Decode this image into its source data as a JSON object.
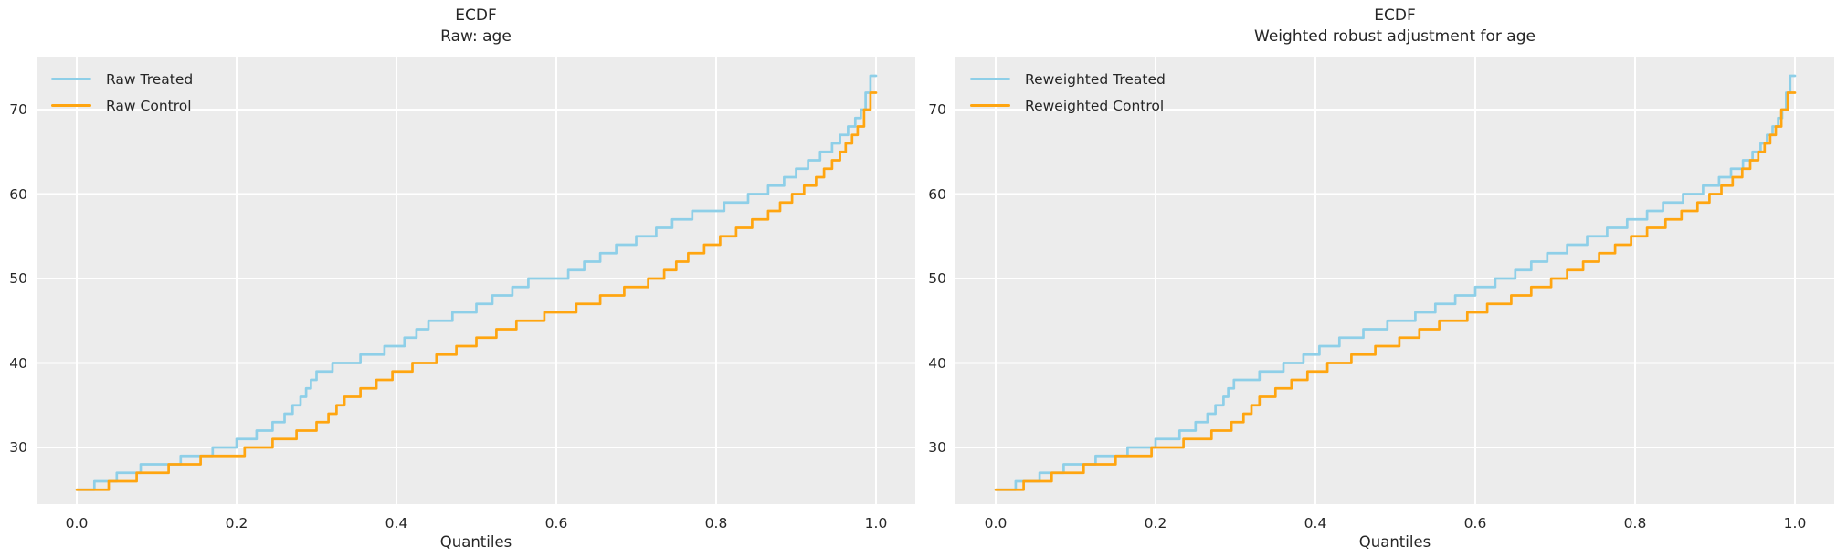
{
  "figure": {
    "background": "#ffffff",
    "axes_background": "#ececec",
    "grid_color": "#ffffff",
    "text_color": "#262626",
    "treated_color": "#8ecfe8",
    "control_color": "#ffa510"
  },
  "chart_data": [
    {
      "type": "line",
      "subtype": "quantile-step",
      "title": "ECDF",
      "subtitle": "Raw: age",
      "xlabel": "Quantiles",
      "ylabel": "",
      "grid": true,
      "legend_position": "upper left",
      "xlim": [
        -0.05,
        1.05
      ],
      "ylim": [
        23.3,
        76.3
      ],
      "x_ticks": [
        {
          "v": 0.0,
          "label": "0.0"
        },
        {
          "v": 0.2,
          "label": "0.2"
        },
        {
          "v": 0.4,
          "label": "0.4"
        },
        {
          "v": 0.6,
          "label": "0.6"
        },
        {
          "v": 0.8,
          "label": "0.8"
        },
        {
          "v": 1.0,
          "label": "1.0"
        }
      ],
      "y_ticks": [
        {
          "v": 30,
          "label": "30"
        },
        {
          "v": 40,
          "label": "40"
        },
        {
          "v": 50,
          "label": "50"
        },
        {
          "v": 60,
          "label": "60"
        },
        {
          "v": 70,
          "label": "70"
        }
      ],
      "series": [
        {
          "name": "Raw Treated",
          "color": "#8ecfe8",
          "points": [
            [
              0,
              25
            ],
            [
              0.022,
              26
            ],
            [
              0.05,
              27
            ],
            [
              0.08,
              28
            ],
            [
              0.13,
              29
            ],
            [
              0.17,
              30
            ],
            [
              0.2,
              31
            ],
            [
              0.225,
              32
            ],
            [
              0.245,
              33
            ],
            [
              0.26,
              34
            ],
            [
              0.27,
              35
            ],
            [
              0.28,
              36
            ],
            [
              0.287,
              37
            ],
            [
              0.293,
              38
            ],
            [
              0.3,
              39
            ],
            [
              0.32,
              40
            ],
            [
              0.355,
              41
            ],
            [
              0.385,
              42
            ],
            [
              0.41,
              43
            ],
            [
              0.425,
              44
            ],
            [
              0.44,
              45
            ],
            [
              0.47,
              46
            ],
            [
              0.5,
              47
            ],
            [
              0.52,
              48
            ],
            [
              0.545,
              49
            ],
            [
              0.565,
              50
            ],
            [
              0.615,
              51
            ],
            [
              0.635,
              52
            ],
            [
              0.655,
              53
            ],
            [
              0.675,
              54
            ],
            [
              0.7,
              55
            ],
            [
              0.725,
              56
            ],
            [
              0.745,
              57
            ],
            [
              0.77,
              58
            ],
            [
              0.81,
              59
            ],
            [
              0.84,
              60
            ],
            [
              0.865,
              61
            ],
            [
              0.885,
              62
            ],
            [
              0.9,
              63
            ],
            [
              0.915,
              64
            ],
            [
              0.93,
              65
            ],
            [
              0.945,
              66
            ],
            [
              0.955,
              67
            ],
            [
              0.965,
              68
            ],
            [
              0.974,
              69
            ],
            [
              0.981,
              70
            ],
            [
              0.987,
              72
            ],
            [
              0.993,
              74
            ]
          ]
        },
        {
          "name": "Raw Control",
          "color": "#ffa510",
          "points": [
            [
              0,
              25
            ],
            [
              0.04,
              26
            ],
            [
              0.075,
              27
            ],
            [
              0.115,
              28
            ],
            [
              0.155,
              29
            ],
            [
              0.21,
              30
            ],
            [
              0.245,
              31
            ],
            [
              0.275,
              32
            ],
            [
              0.3,
              33
            ],
            [
              0.315,
              34
            ],
            [
              0.325,
              35
            ],
            [
              0.335,
              36
            ],
            [
              0.355,
              37
            ],
            [
              0.375,
              38
            ],
            [
              0.395,
              39
            ],
            [
              0.42,
              40
            ],
            [
              0.45,
              41
            ],
            [
              0.475,
              42
            ],
            [
              0.5,
              43
            ],
            [
              0.525,
              44
            ],
            [
              0.55,
              45
            ],
            [
              0.585,
              46
            ],
            [
              0.625,
              47
            ],
            [
              0.655,
              48
            ],
            [
              0.685,
              49
            ],
            [
              0.715,
              50
            ],
            [
              0.735,
              51
            ],
            [
              0.75,
              52
            ],
            [
              0.765,
              53
            ],
            [
              0.785,
              54
            ],
            [
              0.805,
              55
            ],
            [
              0.825,
              56
            ],
            [
              0.845,
              57
            ],
            [
              0.865,
              58
            ],
            [
              0.88,
              59
            ],
            [
              0.895,
              60
            ],
            [
              0.91,
              61
            ],
            [
              0.925,
              62
            ],
            [
              0.935,
              63
            ],
            [
              0.945,
              64
            ],
            [
              0.955,
              65
            ],
            [
              0.962,
              66
            ],
            [
              0.97,
              67
            ],
            [
              0.977,
              68
            ],
            [
              0.985,
              70
            ],
            [
              0.993,
              72
            ]
          ]
        }
      ]
    },
    {
      "type": "line",
      "subtype": "quantile-step",
      "title": "ECDF",
      "subtitle": "Weighted robust adjustment for age",
      "xlabel": "Quantiles",
      "ylabel": "",
      "grid": true,
      "legend_position": "upper left",
      "xlim": [
        -0.05,
        1.05
      ],
      "ylim": [
        23.3,
        76.3
      ],
      "x_ticks": [
        {
          "v": 0.0,
          "label": "0.0"
        },
        {
          "v": 0.2,
          "label": "0.2"
        },
        {
          "v": 0.4,
          "label": "0.4"
        },
        {
          "v": 0.6,
          "label": "0.6"
        },
        {
          "v": 0.8,
          "label": "0.8"
        },
        {
          "v": 1.0,
          "label": "1.0"
        }
      ],
      "y_ticks": [
        {
          "v": 30,
          "label": "30"
        },
        {
          "v": 40,
          "label": "40"
        },
        {
          "v": 50,
          "label": "50"
        },
        {
          "v": 60,
          "label": "60"
        },
        {
          "v": 70,
          "label": "70"
        }
      ],
      "series": [
        {
          "name": "Reweighted Treated",
          "color": "#8ecfe8",
          "points": [
            [
              0,
              25
            ],
            [
              0.025,
              26
            ],
            [
              0.055,
              27
            ],
            [
              0.085,
              28
            ],
            [
              0.125,
              29
            ],
            [
              0.165,
              30
            ],
            [
              0.2,
              31
            ],
            [
              0.23,
              32
            ],
            [
              0.25,
              33
            ],
            [
              0.265,
              34
            ],
            [
              0.275,
              35
            ],
            [
              0.285,
              36
            ],
            [
              0.291,
              37
            ],
            [
              0.298,
              38
            ],
            [
              0.33,
              39
            ],
            [
              0.36,
              40
            ],
            [
              0.385,
              41
            ],
            [
              0.405,
              42
            ],
            [
              0.43,
              43
            ],
            [
              0.46,
              44
            ],
            [
              0.49,
              45
            ],
            [
              0.525,
              46
            ],
            [
              0.55,
              47
            ],
            [
              0.575,
              48
            ],
            [
              0.6,
              49
            ],
            [
              0.625,
              50
            ],
            [
              0.65,
              51
            ],
            [
              0.67,
              52
            ],
            [
              0.69,
              53
            ],
            [
              0.715,
              54
            ],
            [
              0.74,
              55
            ],
            [
              0.765,
              56
            ],
            [
              0.79,
              57
            ],
            [
              0.815,
              58
            ],
            [
              0.835,
              59
            ],
            [
              0.86,
              60
            ],
            [
              0.885,
              61
            ],
            [
              0.905,
              62
            ],
            [
              0.92,
              63
            ],
            [
              0.935,
              64
            ],
            [
              0.947,
              65
            ],
            [
              0.957,
              66
            ],
            [
              0.965,
              67
            ],
            [
              0.972,
              68
            ],
            [
              0.979,
              69
            ],
            [
              0.984,
              70
            ],
            [
              0.989,
              72
            ],
            [
              0.994,
              74
            ]
          ]
        },
        {
          "name": "Reweighted Control",
          "color": "#ffa510",
          "points": [
            [
              0,
              25
            ],
            [
              0.035,
              26
            ],
            [
              0.07,
              27
            ],
            [
              0.11,
              28
            ],
            [
              0.15,
              29
            ],
            [
              0.195,
              30
            ],
            [
              0.235,
              31
            ],
            [
              0.27,
              32
            ],
            [
              0.295,
              33
            ],
            [
              0.31,
              34
            ],
            [
              0.32,
              35
            ],
            [
              0.33,
              36
            ],
            [
              0.35,
              37
            ],
            [
              0.37,
              38
            ],
            [
              0.39,
              39
            ],
            [
              0.415,
              40
            ],
            [
              0.445,
              41
            ],
            [
              0.475,
              42
            ],
            [
              0.505,
              43
            ],
            [
              0.53,
              44
            ],
            [
              0.555,
              45
            ],
            [
              0.59,
              46
            ],
            [
              0.615,
              47
            ],
            [
              0.645,
              48
            ],
            [
              0.67,
              49
            ],
            [
              0.695,
              50
            ],
            [
              0.715,
              51
            ],
            [
              0.735,
              52
            ],
            [
              0.755,
              53
            ],
            [
              0.775,
              54
            ],
            [
              0.795,
              55
            ],
            [
              0.815,
              56
            ],
            [
              0.838,
              57
            ],
            [
              0.858,
              58
            ],
            [
              0.878,
              59
            ],
            [
              0.893,
              60
            ],
            [
              0.908,
              61
            ],
            [
              0.922,
              62
            ],
            [
              0.934,
              63
            ],
            [
              0.944,
              64
            ],
            [
              0.954,
              65
            ],
            [
              0.962,
              66
            ],
            [
              0.969,
              67
            ],
            [
              0.976,
              68
            ],
            [
              0.983,
              70
            ],
            [
              0.991,
              72
            ]
          ]
        }
      ]
    }
  ]
}
